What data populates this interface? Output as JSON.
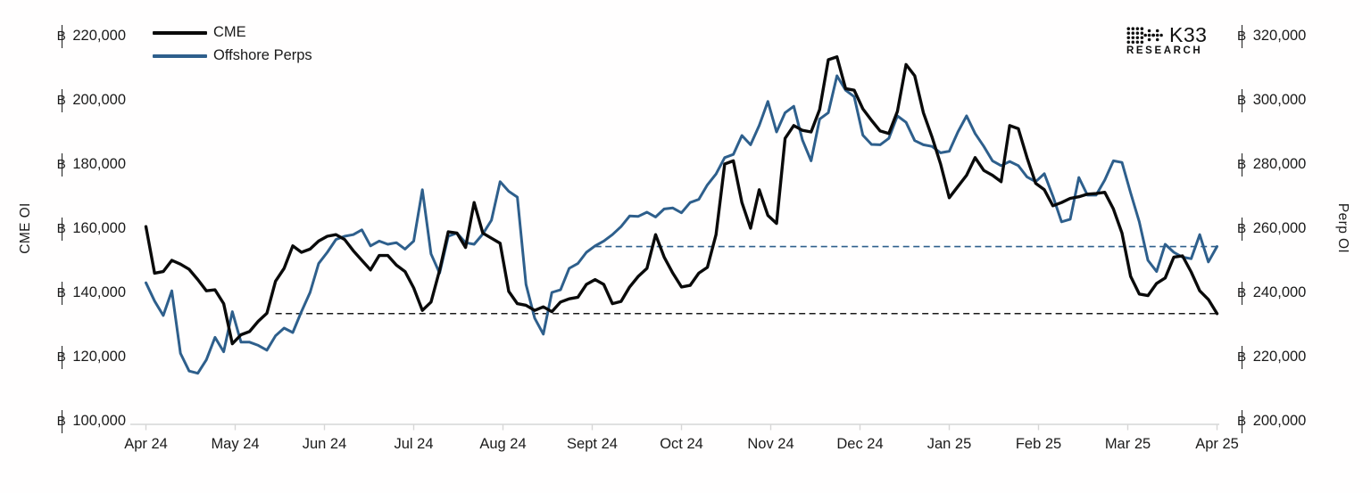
{
  "page": {
    "border_color": "#a6bccd",
    "background": "#fffefe",
    "axis_line_color": "#d6d6d6",
    "text_color": "#1b1b1b"
  },
  "legend": {
    "items": [
      {
        "label": "CME",
        "color": "#0a0a0a"
      },
      {
        "label": "Offshore Perps",
        "color": "#2E5F8C"
      }
    ]
  },
  "logo": {
    "brand": "K33",
    "sub": "RESEARCH"
  },
  "chart_data": {
    "type": "line",
    "grid": false,
    "legend_position": "top-left",
    "currency_symbol": "฿",
    "x": {
      "tick_labels": [
        "Apr 24",
        "May 24",
        "Jun 24",
        "Jul 24",
        "Aug 24",
        "Sept 24",
        "Oct 24",
        "Nov 24",
        "Dec 24",
        "Jan 25",
        "Feb 25",
        "Mar 25",
        "Apr 25"
      ]
    },
    "left_axis": {
      "title": "CME OI",
      "min": 100000,
      "max": 220000,
      "tick_labels": [
        "100,000",
        "120,000",
        "140,000",
        "160,000",
        "180,000",
        "200,000",
        "220,000"
      ]
    },
    "right_axis": {
      "title": "Perp OI",
      "min": 200000,
      "max": 320000,
      "tick_labels": [
        "200,000",
        "220,000",
        "240,000",
        "260,000",
        "280,000",
        "300,000",
        "320,000"
      ]
    },
    "series": [
      {
        "name": "CME",
        "axis": "left",
        "color": "#0a0a0a",
        "stroke_width": 3.4,
        "values": [
          160500,
          146000,
          146500,
          150000,
          148800,
          147200,
          144000,
          140500,
          140800,
          136500,
          124000,
          126800,
          127800,
          131000,
          133500,
          143500,
          147500,
          154500,
          152500,
          153500,
          156000,
          157500,
          158000,
          156500,
          153000,
          150000,
          147000,
          151500,
          151500,
          148500,
          146500,
          141400,
          134400,
          137000,
          146900,
          158900,
          158500,
          154000,
          168000,
          158500,
          156900,
          155300,
          140300,
          136500,
          136000,
          134400,
          135500,
          134000,
          137000,
          138000,
          138500,
          142500,
          144000,
          142500,
          136500,
          137200,
          141700,
          145000,
          147500,
          158000,
          151000,
          146000,
          141700,
          142200,
          146000,
          147800,
          158000,
          180000,
          181000,
          168000,
          160000,
          172000,
          164000,
          161500,
          188000,
          192000,
          190500,
          190000,
          197000,
          212500,
          213400,
          203500,
          203000,
          197200,
          193600,
          190300,
          189500,
          196400,
          211000,
          207500,
          196000,
          188500,
          180000,
          169500,
          173000,
          176500,
          182000,
          178000,
          176500,
          174500,
          192000,
          191000,
          182000,
          174000,
          172000,
          167000,
          168000,
          169300,
          169800,
          170600,
          170800,
          171200,
          166000,
          158500,
          145000,
          139500,
          139000,
          142800,
          144500,
          151000,
          151400,
          146400,
          140500,
          137800,
          133400
        ]
      },
      {
        "name": "Offshore Perps",
        "axis": "right",
        "color": "#2E5F8C",
        "stroke_width": 3.0,
        "values": [
          243000,
          237300,
          232800,
          240500,
          221000,
          215500,
          214800,
          219000,
          226000,
          221500,
          234000,
          224500,
          224500,
          223500,
          222000,
          226500,
          228900,
          227500,
          234000,
          240000,
          249000,
          252500,
          256500,
          257500,
          258000,
          259500,
          254500,
          256000,
          255000,
          255500,
          253500,
          256000,
          272000,
          252000,
          246000,
          257500,
          258500,
          255500,
          255000,
          258200,
          262500,
          274500,
          271500,
          269700,
          242500,
          232000,
          227000,
          240000,
          240800,
          247500,
          249000,
          252500,
          254500,
          256000,
          258000,
          260500,
          263800,
          263700,
          265000,
          263500,
          266000,
          266300,
          264800,
          268000,
          269000,
          273500,
          276900,
          282000,
          283000,
          288900,
          286000,
          292000,
          299500,
          290000,
          296000,
          298000,
          287500,
          281000,
          294000,
          296000,
          307500,
          303000,
          301000,
          289000,
          286100,
          286000,
          288000,
          295000,
          293000,
          287300,
          286000,
          285500,
          283500,
          284000,
          290000,
          295000,
          289500,
          285500,
          281000,
          279500,
          280800,
          279500,
          276000,
          274500,
          277000,
          270000,
          262000,
          262800,
          275800,
          270300,
          270300,
          275000,
          281000,
          280500,
          271000,
          262000,
          250000,
          246500,
          255000,
          252500,
          251000,
          250500,
          258000,
          249500,
          254300
        ]
      }
    ],
    "reference_lines": [
      {
        "series": "CME",
        "axis": "left",
        "value": 133400,
        "style": "dashed",
        "color": "#1a1a1a",
        "start_index": 15
      },
      {
        "series": "Offshore Perps",
        "axis": "right",
        "value": 254300,
        "style": "dashed",
        "color": "#2E5F8C",
        "start_index": 52
      }
    ]
  }
}
